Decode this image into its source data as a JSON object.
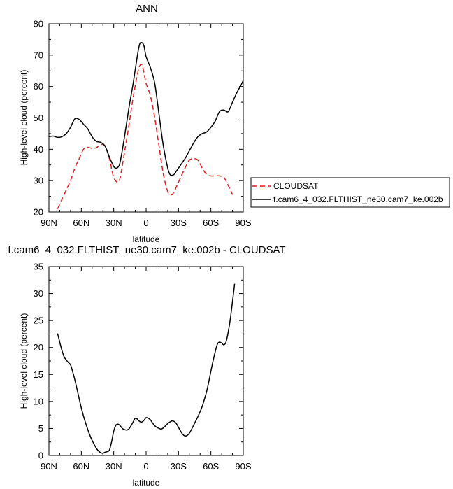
{
  "chart_data": [
    {
      "type": "line",
      "title": "ANN",
      "xlabel": "latitude",
      "ylabel": "High-level cloud (percent)",
      "xlim": [
        -90,
        90
      ],
      "ylim": [
        20,
        80
      ],
      "xticks": [
        -90,
        -60,
        -30,
        0,
        30,
        60,
        90
      ],
      "xtick_labels": [
        "90N",
        "60N",
        "30N",
        "0",
        "30S",
        "60S",
        "90S"
      ],
      "yticks": [
        20,
        30,
        40,
        50,
        60,
        70,
        80
      ],
      "ytick_labels": [
        "20",
        "30",
        "40",
        "50",
        "60",
        "70",
        "80"
      ],
      "legend_position": "right",
      "series": [
        {
          "name": "CLOUDSAT",
          "color": "#e41a1c",
          "dash": "dashed",
          "x": [
            -82,
            -78,
            -74,
            -70,
            -66,
            -62,
            -58,
            -54,
            -50,
            -46,
            -42,
            -38,
            -34,
            -30,
            -26,
            -24,
            -20,
            -16,
            -12,
            -8,
            -6,
            -4,
            -2,
            0,
            4,
            8,
            12,
            16,
            20,
            22,
            24,
            26,
            28,
            32,
            36,
            40,
            44,
            48,
            52,
            56,
            60,
            64,
            68,
            72,
            76,
            80
          ],
          "y": [
            21,
            24,
            27,
            30,
            34,
            37,
            40,
            40.6,
            40.3,
            40.5,
            41.5,
            41,
            37,
            31,
            29.5,
            31,
            39,
            47.5,
            56.5,
            64,
            66.5,
            67,
            64.5,
            61,
            57,
            50,
            41,
            32,
            26.5,
            26,
            25.5,
            26.5,
            28,
            31,
            34,
            36.5,
            37,
            36.5,
            34,
            32,
            31.5,
            31.5,
            31.5,
            31,
            28.5,
            25.5
          ]
        },
        {
          "name": "f.cam6_4_032.FLTHIST_ne30.cam7_ke.002b",
          "color": "#000000",
          "dash": "solid",
          "x": [
            -90,
            -86,
            -82,
            -78,
            -74,
            -70,
            -66,
            -62,
            -58,
            -54,
            -50,
            -46,
            -42,
            -38,
            -34,
            -30,
            -28,
            -26,
            -24,
            -20,
            -16,
            -12,
            -8,
            -6,
            -4,
            -2,
            0,
            4,
            8,
            12,
            16,
            20,
            22,
            24,
            26,
            28,
            32,
            36,
            40,
            44,
            48,
            52,
            56,
            60,
            64,
            68,
            72,
            76,
            80,
            84,
            88,
            90
          ],
          "y": [
            44,
            44.2,
            43.8,
            44,
            45,
            47,
            49.7,
            49.5,
            48,
            46.5,
            44,
            42.5,
            42.2,
            41,
            37.5,
            34.5,
            34,
            34.3,
            36,
            44,
            53,
            61,
            70,
            73.5,
            74,
            73,
            69.5,
            66,
            61,
            51,
            41,
            34,
            32,
            31.7,
            32,
            33,
            35,
            37,
            39.5,
            42,
            44,
            45,
            45.5,
            47,
            49,
            52,
            52.5,
            52,
            55,
            58,
            60.5,
            62
          ]
        }
      ]
    },
    {
      "type": "line",
      "title": "f.cam6_4_032.FLTHIST_ne30.cam7_ke.002b - CLOUDSAT",
      "xlabel": "latitude",
      "ylabel": "High-level cloud (percent)",
      "xlim": [
        -90,
        90
      ],
      "ylim": [
        0,
        35
      ],
      "xticks": [
        -90,
        -60,
        -30,
        0,
        30,
        60,
        90
      ],
      "xtick_labels": [
        "90N",
        "60N",
        "30N",
        "0",
        "30S",
        "60S",
        "90S"
      ],
      "yticks": [
        0,
        5,
        10,
        15,
        20,
        25,
        30,
        35
      ],
      "ytick_labels": [
        "0",
        "5",
        "10",
        "15",
        "20",
        "25",
        "30",
        "35"
      ],
      "series": [
        {
          "color": "#000000",
          "dash": "solid",
          "x": [
            -82,
            -80,
            -78,
            -76,
            -74,
            -72,
            -70,
            -68,
            -66,
            -64,
            -62,
            -60,
            -58,
            -56,
            -54,
            -52,
            -50,
            -48,
            -46,
            -44,
            -42,
            -40,
            -38,
            -36,
            -34,
            -32,
            -30,
            -28,
            -26,
            -24,
            -22,
            -20,
            -18,
            -16,
            -14,
            -12,
            -10,
            -8,
            -6,
            -4,
            -2,
            0,
            2,
            4,
            6,
            8,
            10,
            12,
            14,
            16,
            18,
            20,
            22,
            24,
            26,
            28,
            30,
            32,
            34,
            36,
            38,
            40,
            42,
            44,
            46,
            48,
            50,
            52,
            54,
            56,
            58,
            60,
            62,
            64,
            66,
            68,
            70,
            72,
            74,
            76,
            78,
            80,
            82
          ],
          "y": [
            22.6,
            21,
            19.5,
            18.3,
            17.7,
            17.2,
            16.8,
            15.5,
            14,
            12.3,
            10.5,
            8.8,
            7.3,
            6,
            4.8,
            3.7,
            2.8,
            2,
            1.3,
            0.8,
            0.5,
            0.4,
            0.6,
            0.7,
            1,
            2.5,
            4.5,
            5.6,
            5.8,
            5.5,
            5,
            4.8,
            4.7,
            4.9,
            5.5,
            6.2,
            6.9,
            6.7,
            6.3,
            6.2,
            6.5,
            7,
            6.9,
            6.6,
            6,
            5.5,
            5.2,
            5,
            4.9,
            5.1,
            5.5,
            5.9,
            6.2,
            6.4,
            6.3,
            5.9,
            5.2,
            4.5,
            3.9,
            3.6,
            3.7,
            4.1,
            4.8,
            5.6,
            6.4,
            7.2,
            8.1,
            9.1,
            10.4,
            11.8,
            13.6,
            15.6,
            17.5,
            19.2,
            20.6,
            21,
            20.8,
            20.5,
            21,
            22.8,
            25.3,
            28.5,
            31.8
          ]
        }
      ]
    }
  ]
}
